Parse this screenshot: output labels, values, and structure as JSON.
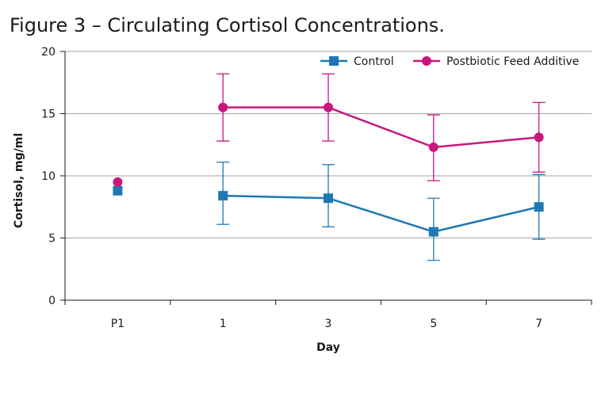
{
  "title": "Figure 3 – Circulating Cortisol Concentrations.",
  "chart_data": {
    "type": "line",
    "title": "Figure 3 – Circulating Cortisol Concentrations.",
    "xlabel": "Day",
    "ylabel": "Cortisol, mg/ml",
    "categories": [
      "P1",
      "1",
      "3",
      "5",
      "7"
    ],
    "ylim": [
      0,
      20
    ],
    "yticks": [
      0,
      5,
      10,
      15,
      20
    ],
    "grid": "horizontal",
    "legend_position": "top-right",
    "series": [
      {
        "name": "Control",
        "color": "#1f78b4",
        "marker": "square",
        "values": [
          8.8,
          8.4,
          8.2,
          5.5,
          7.5
        ],
        "error_low": [
          null,
          6.1,
          5.9,
          3.2,
          4.9
        ],
        "error_high": [
          null,
          11.1,
          10.9,
          8.2,
          10.1
        ],
        "connected_from_index": 1
      },
      {
        "name": "Postbiotic Feed Additive",
        "color": "#c8177c",
        "marker": "circle",
        "values": [
          9.5,
          15.5,
          15.5,
          12.3,
          13.1
        ],
        "error_low": [
          null,
          12.8,
          12.8,
          9.6,
          10.3
        ],
        "error_high": [
          null,
          18.2,
          18.2,
          14.9,
          15.9
        ],
        "connected_from_index": 1
      }
    ]
  }
}
